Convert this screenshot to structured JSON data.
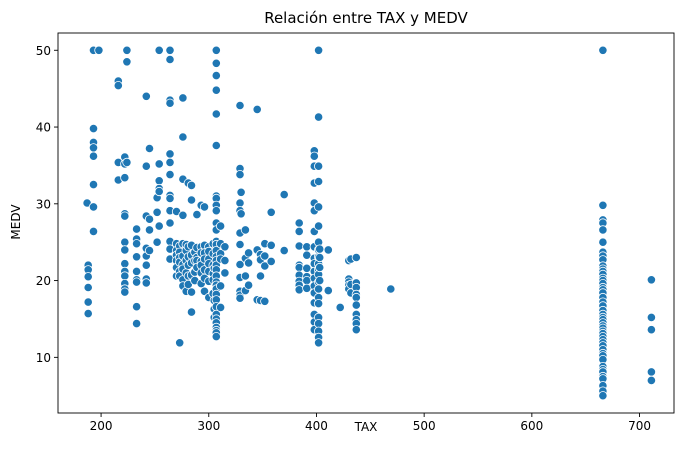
{
  "chart_data": {
    "type": "scatter",
    "title": "Relación entre TAX y MEDV",
    "xlabel": "TAX",
    "ylabel": "MEDV",
    "xlim": [
      160,
      732
    ],
    "ylim": [
      2.75,
      52.25
    ],
    "xticks": [
      200,
      300,
      400,
      500,
      600,
      700
    ],
    "yticks": [
      10,
      20,
      30,
      40,
      50
    ],
    "grid": false,
    "marker_color": "#1f77b4",
    "marker_edge": "#ffffff",
    "points": [
      [
        187,
        30.1
      ],
      [
        188,
        22.0
      ],
      [
        188,
        21.4
      ],
      [
        188,
        20.5
      ],
      [
        188,
        19.1
      ],
      [
        188,
        17.2
      ],
      [
        188,
        15.7
      ],
      [
        193,
        50.0
      ],
      [
        193,
        39.8
      ],
      [
        193,
        38.0
      ],
      [
        193,
        37.3
      ],
      [
        193,
        36.2
      ],
      [
        193,
        32.5
      ],
      [
        193,
        29.6
      ],
      [
        193,
        26.4
      ],
      [
        198,
        50.0
      ],
      [
        216,
        46.0
      ],
      [
        216,
        45.4
      ],
      [
        216,
        35.4
      ],
      [
        216,
        33.1
      ],
      [
        222,
        36.1
      ],
      [
        222,
        35.2
      ],
      [
        222,
        33.4
      ],
      [
        222,
        28.7
      ],
      [
        222,
        28.4
      ],
      [
        222,
        25.0
      ],
      [
        222,
        24.0
      ],
      [
        222,
        22.2
      ],
      [
        222,
        21.2
      ],
      [
        222,
        20.6
      ],
      [
        222,
        19.6
      ],
      [
        222,
        18.9
      ],
      [
        222,
        18.5
      ],
      [
        224,
        50.0
      ],
      [
        224,
        48.5
      ],
      [
        224,
        35.4
      ],
      [
        233,
        26.7
      ],
      [
        233,
        25.4
      ],
      [
        233,
        24.8
      ],
      [
        233,
        23.1
      ],
      [
        233,
        21.2
      ],
      [
        233,
        20.1
      ],
      [
        233,
        19.8
      ],
      [
        233,
        16.6
      ],
      [
        233,
        14.4
      ],
      [
        242,
        44.0
      ],
      [
        242,
        34.9
      ],
      [
        242,
        28.4
      ],
      [
        242,
        24.2
      ],
      [
        242,
        23.2
      ],
      [
        242,
        22.0
      ],
      [
        242,
        20.2
      ],
      [
        242,
        19.7
      ],
      [
        245,
        37.2
      ],
      [
        245,
        28.0
      ],
      [
        245,
        26.6
      ],
      [
        245,
        23.9
      ],
      [
        252,
        30.8
      ],
      [
        252,
        28.9
      ],
      [
        252,
        25.0
      ],
      [
        254,
        50.0
      ],
      [
        254,
        35.2
      ],
      [
        254,
        33.0
      ],
      [
        254,
        32.0
      ],
      [
        254,
        31.6
      ],
      [
        254,
        27.1
      ],
      [
        264,
        50.0
      ],
      [
        264,
        48.8
      ],
      [
        264,
        43.5
      ],
      [
        264,
        43.1
      ],
      [
        264,
        36.5
      ],
      [
        264,
        35.4
      ],
      [
        264,
        33.8
      ],
      [
        264,
        31.1
      ],
      [
        264,
        30.7
      ],
      [
        264,
        29.1
      ],
      [
        264,
        27.5
      ],
      [
        264,
        25.1
      ],
      [
        264,
        24.1
      ],
      [
        264,
        22.8
      ],
      [
        270,
        29.0
      ],
      [
        270,
        24.8
      ],
      [
        270,
        23.9
      ],
      [
        270,
        23.3
      ],
      [
        270,
        22.6
      ],
      [
        270,
        21.7
      ],
      [
        270,
        20.6
      ],
      [
        273,
        24.5
      ],
      [
        273,
        23.7
      ],
      [
        273,
        23.0
      ],
      [
        273,
        22.4
      ],
      [
        273,
        21.2
      ],
      [
        273,
        20.6
      ],
      [
        273,
        11.9
      ],
      [
        276,
        43.8
      ],
      [
        276,
        38.7
      ],
      [
        276,
        33.2
      ],
      [
        276,
        28.5
      ],
      [
        276,
        24.8
      ],
      [
        276,
        23.2
      ],
      [
        276,
        22.1
      ],
      [
        276,
        21.5
      ],
      [
        276,
        20.1
      ],
      [
        276,
        19.3
      ],
      [
        279,
        24.7
      ],
      [
        279,
        23.9
      ],
      [
        279,
        22.6
      ],
      [
        279,
        21.0
      ],
      [
        279,
        18.6
      ],
      [
        281,
        32.7
      ],
      [
        281,
        24.4
      ],
      [
        281,
        23.1
      ],
      [
        281,
        22.0
      ],
      [
        281,
        20.6
      ],
      [
        281,
        19.5
      ],
      [
        284,
        32.4
      ],
      [
        284,
        30.5
      ],
      [
        284,
        24.6
      ],
      [
        284,
        23.3
      ],
      [
        284,
        22.3
      ],
      [
        284,
        20.7
      ],
      [
        284,
        18.5
      ],
      [
        284,
        15.9
      ],
      [
        287,
        23.7
      ],
      [
        287,
        22.6
      ],
      [
        287,
        21.1
      ],
      [
        287,
        20.0
      ],
      [
        289,
        28.6
      ],
      [
        289,
        24.3
      ],
      [
        289,
        23.0
      ],
      [
        289,
        22.6
      ],
      [
        289,
        21.7
      ],
      [
        293,
        29.8
      ],
      [
        293,
        24.4
      ],
      [
        293,
        23.6
      ],
      [
        293,
        22.5
      ],
      [
        293,
        22.0
      ],
      [
        293,
        21.0
      ],
      [
        293,
        19.6
      ],
      [
        296,
        29.6
      ],
      [
        296,
        24.6
      ],
      [
        296,
        23.6
      ],
      [
        296,
        22.8
      ],
      [
        296,
        21.4
      ],
      [
        296,
        20.3
      ],
      [
        296,
        18.6
      ],
      [
        300,
        24.4
      ],
      [
        300,
        23.8
      ],
      [
        300,
        22.8
      ],
      [
        300,
        22.2
      ],
      [
        300,
        21.2
      ],
      [
        300,
        19.9
      ],
      [
        300,
        17.8
      ],
      [
        304,
        24.8
      ],
      [
        304,
        23.5
      ],
      [
        304,
        22.0
      ],
      [
        304,
        20.9
      ],
      [
        304,
        20.1
      ],
      [
        304,
        18.3
      ],
      [
        305,
        21.6
      ],
      [
        305,
        17.4
      ],
      [
        305,
        16.3
      ],
      [
        305,
        15.2
      ],
      [
        307,
        50.0
      ],
      [
        307,
        48.3
      ],
      [
        307,
        46.7
      ],
      [
        307,
        44.8
      ],
      [
        307,
        41.7
      ],
      [
        307,
        37.6
      ],
      [
        307,
        31.0
      ],
      [
        307,
        30.7
      ],
      [
        307,
        29.8
      ],
      [
        307,
        29.1
      ],
      [
        307,
        27.5
      ],
      [
        307,
        26.6
      ],
      [
        307,
        25.1
      ],
      [
        307,
        24.7
      ],
      [
        307,
        23.9
      ],
      [
        307,
        23.1
      ],
      [
        307,
        22.6
      ],
      [
        307,
        22.0
      ],
      [
        307,
        21.4
      ],
      [
        307,
        20.6
      ],
      [
        307,
        19.8
      ],
      [
        307,
        19.4
      ],
      [
        307,
        18.9
      ],
      [
        307,
        18.2
      ],
      [
        307,
        17.5
      ],
      [
        307,
        16.6
      ],
      [
        307,
        15.6
      ],
      [
        307,
        15.0
      ],
      [
        307,
        14.5
      ],
      [
        307,
        13.9
      ],
      [
        307,
        13.5
      ],
      [
        307,
        13.2
      ],
      [
        307,
        12.7
      ],
      [
        311,
        27.1
      ],
      [
        311,
        24.8
      ],
      [
        311,
        23.5
      ],
      [
        311,
        22.8
      ],
      [
        311,
        19.3
      ],
      [
        311,
        16.5
      ],
      [
        315,
        24.4
      ],
      [
        315,
        22.6
      ],
      [
        315,
        21.0
      ],
      [
        329,
        42.8
      ],
      [
        329,
        34.6
      ],
      [
        329,
        33.8
      ],
      [
        329,
        30.1
      ],
      [
        329,
        29.1
      ],
      [
        329,
        26.2
      ],
      [
        329,
        24.7
      ],
      [
        329,
        22.1
      ],
      [
        329,
        20.4
      ],
      [
        329,
        18.6
      ],
      [
        329,
        18.1
      ],
      [
        329,
        17.7
      ],
      [
        330,
        31.5
      ],
      [
        330,
        28.7
      ],
      [
        334,
        26.6
      ],
      [
        334,
        22.9
      ],
      [
        334,
        20.6
      ],
      [
        334,
        18.7
      ],
      [
        337,
        23.6
      ],
      [
        337,
        22.3
      ],
      [
        337,
        19.4
      ],
      [
        345,
        42.3
      ],
      [
        345,
        24.0
      ],
      [
        345,
        17.5
      ],
      [
        348,
        23.4
      ],
      [
        348,
        22.7
      ],
      [
        348,
        20.6
      ],
      [
        348,
        17.4
      ],
      [
        352,
        24.8
      ],
      [
        352,
        23.2
      ],
      [
        352,
        21.9
      ],
      [
        352,
        17.3
      ],
      [
        358,
        28.9
      ],
      [
        358,
        24.6
      ],
      [
        358,
        22.5
      ],
      [
        370,
        31.2
      ],
      [
        370,
        23.9
      ],
      [
        384,
        27.5
      ],
      [
        384,
        26.4
      ],
      [
        384,
        24.5
      ],
      [
        384,
        22.0
      ],
      [
        384,
        21.7
      ],
      [
        384,
        20.7
      ],
      [
        384,
        19.9
      ],
      [
        384,
        19.4
      ],
      [
        384,
        18.8
      ],
      [
        391,
        24.4
      ],
      [
        391,
        23.3
      ],
      [
        391,
        21.6
      ],
      [
        391,
        20.5
      ],
      [
        391,
        20.0
      ],
      [
        391,
        19.0
      ],
      [
        398,
        36.9
      ],
      [
        398,
        36.2
      ],
      [
        398,
        34.9
      ],
      [
        398,
        32.7
      ],
      [
        398,
        30.1
      ],
      [
        398,
        29.1
      ],
      [
        398,
        26.4
      ],
      [
        398,
        24.4
      ],
      [
        398,
        22.9
      ],
      [
        398,
        22.2
      ],
      [
        398,
        21.2
      ],
      [
        398,
        20.3
      ],
      [
        398,
        19.3
      ],
      [
        398,
        18.4
      ],
      [
        398,
        17.1
      ],
      [
        398,
        15.6
      ],
      [
        398,
        14.6
      ],
      [
        398,
        13.6
      ],
      [
        402,
        50.0
      ],
      [
        402,
        41.3
      ],
      [
        402,
        34.9
      ],
      [
        402,
        32.9
      ],
      [
        402,
        29.6
      ],
      [
        402,
        27.1
      ],
      [
        402,
        25.0
      ],
      [
        402,
        24.0
      ],
      [
        402,
        23.1
      ],
      [
        402,
        22.2
      ],
      [
        402,
        21.4
      ],
      [
        402,
        20.8
      ],
      [
        402,
        19.8
      ],
      [
        402,
        18.9
      ],
      [
        402,
        17.8
      ],
      [
        402,
        17.0
      ],
      [
        402,
        15.2
      ],
      [
        402,
        14.4
      ],
      [
        402,
        13.4
      ],
      [
        402,
        12.6
      ],
      [
        402,
        11.9
      ],
      [
        403,
        24.1
      ],
      [
        403,
        23.0
      ],
      [
        403,
        21.7
      ],
      [
        403,
        20.0
      ],
      [
        411,
        24.0
      ],
      [
        411,
        18.7
      ],
      [
        422,
        16.5
      ],
      [
        430,
        22.6
      ],
      [
        430,
        20.2
      ],
      [
        430,
        19.8
      ],
      [
        430,
        19.4
      ],
      [
        430,
        18.9
      ],
      [
        432,
        22.8
      ],
      [
        432,
        19.5
      ],
      [
        432,
        18.4
      ],
      [
        437,
        23.0
      ],
      [
        437,
        19.7
      ],
      [
        437,
        19.1
      ],
      [
        437,
        18.2
      ],
      [
        437,
        17.8
      ],
      [
        437,
        16.8
      ],
      [
        437,
        15.6
      ],
      [
        437,
        14.9
      ],
      [
        437,
        14.4
      ],
      [
        437,
        13.6
      ],
      [
        469,
        18.9
      ],
      [
        666,
        50.0
      ],
      [
        666,
        29.8
      ],
      [
        666,
        27.9
      ],
      [
        666,
        27.5
      ],
      [
        666,
        26.6
      ],
      [
        666,
        25.0
      ],
      [
        666,
        23.7
      ],
      [
        666,
        23.2
      ],
      [
        666,
        22.7
      ],
      [
        666,
        21.9
      ],
      [
        666,
        21.5
      ],
      [
        666,
        21.2
      ],
      [
        666,
        20.8
      ],
      [
        666,
        20.3
      ],
      [
        666,
        20.0
      ],
      [
        666,
        19.6
      ],
      [
        666,
        19.1
      ],
      [
        666,
        18.8
      ],
      [
        666,
        18.4
      ],
      [
        666,
        17.8
      ],
      [
        666,
        17.2
      ],
      [
        666,
        16.7
      ],
      [
        666,
        16.1
      ],
      [
        666,
        15.6
      ],
      [
        666,
        15.2
      ],
      [
        666,
        14.9
      ],
      [
        666,
        14.5
      ],
      [
        666,
        14.1
      ],
      [
        666,
        13.8
      ],
      [
        666,
        13.4
      ],
      [
        666,
        13.1
      ],
      [
        666,
        12.7
      ],
      [
        666,
        12.3
      ],
      [
        666,
        11.9
      ],
      [
        666,
        11.5
      ],
      [
        666,
        11.0
      ],
      [
        666,
        10.5
      ],
      [
        666,
        10.2
      ],
      [
        666,
        9.7
      ],
      [
        666,
        8.8
      ],
      [
        666,
        8.4
      ],
      [
        666,
        8.1
      ],
      [
        666,
        7.5
      ],
      [
        666,
        7.2
      ],
      [
        666,
        6.3
      ],
      [
        666,
        5.6
      ],
      [
        666,
        5.0
      ],
      [
        711,
        20.1
      ],
      [
        711,
        15.2
      ],
      [
        711,
        13.6
      ],
      [
        711,
        8.1
      ],
      [
        711,
        7.0
      ]
    ]
  }
}
